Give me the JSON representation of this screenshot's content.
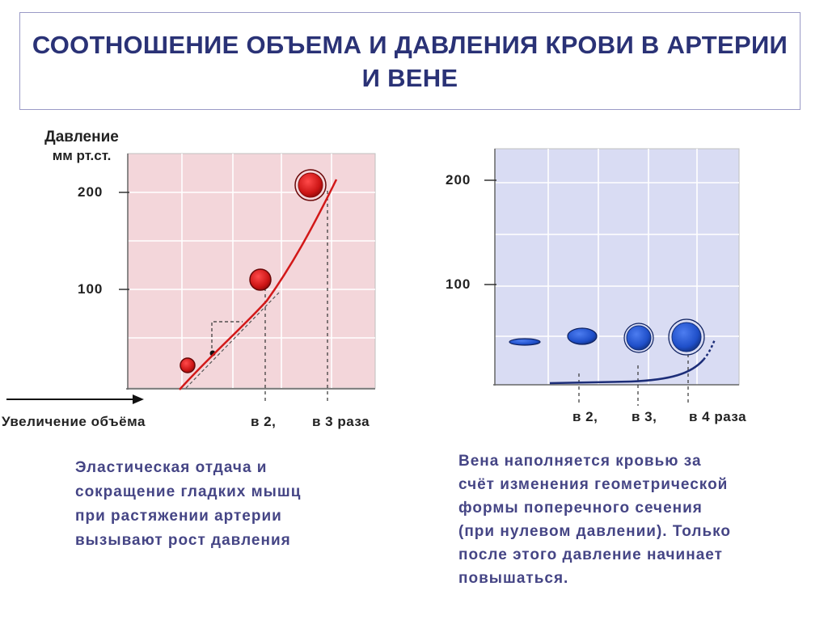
{
  "title": "СООТНОШЕНИЕ ОБЪЕМА И ДАВЛЕНИЯ КРОВИ В АРТЕРИИ И ВЕНЕ",
  "colors": {
    "title": "#2a3276",
    "artery_bg": "#f3d6da",
    "vein_bg": "#d9dcf3",
    "artery_curve": "#d21818",
    "artery_dot": "#cc1515",
    "vein_dot": "#1f4fc9",
    "vein_curve": "#1c2d78",
    "description_text": "#454585"
  },
  "artery_chart": {
    "y_label_line1": "Давление",
    "y_label_line2": "мм рт.ст.",
    "y_ticks": [
      "200",
      "100"
    ],
    "x_label": "Увеличение объёма",
    "x_ticks": [
      "в 2,",
      "в 3 раза"
    ],
    "description": [
      "Эластическая отдача и",
      "сокращение гладких мышц",
      "при растяжении артерии",
      "вызывают рост давления"
    ]
  },
  "vein_chart": {
    "y_ticks": [
      "200",
      "100"
    ],
    "x_ticks": [
      "в 2,",
      "в 3,",
      "в 4 раза"
    ],
    "description": [
      "Вена наполняется кровью за",
      "счёт изменения геометрической",
      "формы поперечного сечения",
      "(при нулевом давлении). Только",
      "после этого давление начинает",
      "повышаться."
    ]
  }
}
